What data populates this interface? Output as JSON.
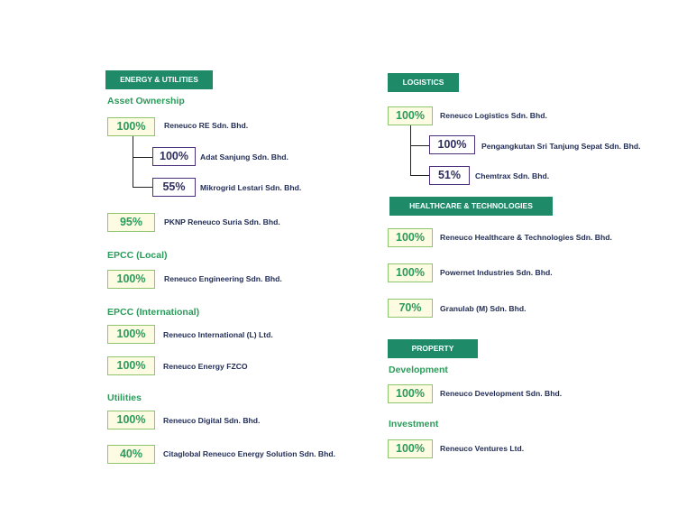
{
  "energy": {
    "header": "ENERGY & UTILITIES",
    "asset_ownership": {
      "label": "Asset Ownership",
      "items": [
        {
          "pct": "100%",
          "name": "Reneuco RE Sdn. Bhd."
        },
        {
          "pct": "100%",
          "name": "Adat Sanjung Sdn. Bhd."
        },
        {
          "pct": "55%",
          "name": "Mikrogrid Lestari Sdn. Bhd."
        },
        {
          "pct": "95%",
          "name": "PKNP Reneuco Suria Sdn. Bhd."
        }
      ]
    },
    "epcc_local": {
      "label": "EPCC (Local)",
      "items": [
        {
          "pct": "100%",
          "name": "Reneuco Engineering Sdn. Bhd."
        }
      ]
    },
    "epcc_international": {
      "label": "EPCC (International)",
      "items": [
        {
          "pct": "100%",
          "name": "Reneuco International (L) Ltd."
        },
        {
          "pct": "100%",
          "name": "Reneuco Energy FZCO"
        }
      ]
    },
    "utilities": {
      "label": "Utilities",
      "items": [
        {
          "pct": "100%",
          "name": "Reneuco Digital Sdn. Bhd."
        },
        {
          "pct": "40%",
          "name": "Citaglobal Reneuco Energy Solution Sdn. Bhd."
        }
      ]
    }
  },
  "logistics": {
    "header": "LOGISTICS",
    "items": [
      {
        "pct": "100%",
        "name": "Reneuco Logistics Sdn. Bhd."
      },
      {
        "pct": "100%",
        "name": "Pengangkutan Sri Tanjung Sepat Sdn. Bhd."
      },
      {
        "pct": "51%",
        "name": "Chemtrax Sdn. Bhd."
      }
    ]
  },
  "healthcare": {
    "header": "HEALTHCARE & TECHNOLOGIES",
    "items": [
      {
        "pct": "100%",
        "name": "Reneuco Healthcare & Technologies Sdn. Bhd."
      },
      {
        "pct": "100%",
        "name": "Powernet Industries Sdn. Bhd."
      },
      {
        "pct": "70%",
        "name": "Granulab (M) Sdn. Bhd."
      }
    ]
  },
  "property": {
    "header": "PROPERTY",
    "development": {
      "label": "Development",
      "items": [
        {
          "pct": "100%",
          "name": "Reneuco Development Sdn. Bhd."
        }
      ]
    },
    "investment": {
      "label": "Investment",
      "items": [
        {
          "pct": "100%",
          "name": "Reneuco Ventures Ltd."
        }
      ]
    }
  },
  "colors": {
    "header_bg": "#1f8a68",
    "subheading": "#2a9b5a",
    "pct_box_fill": "#fdfbe2",
    "pct_box_border": "#8fc46e",
    "sub_box_border": "#4a2f7a",
    "company_text": "#1f2b55"
  }
}
